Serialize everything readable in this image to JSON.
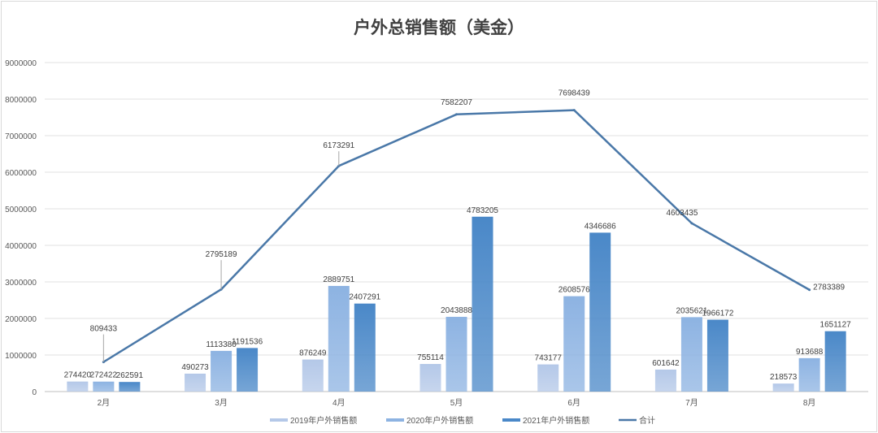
{
  "chart_data": {
    "type": "bar+line",
    "title": "户外总销售额（美金）",
    "categories": [
      "2月",
      "3月",
      "4月",
      "5月",
      "6月",
      "7月",
      "8月"
    ],
    "series": [
      {
        "name": "2019年户外销售额",
        "kind": "bar",
        "color": "#b4c8e8",
        "values": [
          274420,
          490273,
          876249,
          755114,
          743177,
          601642,
          218573
        ]
      },
      {
        "name": "2020年户外销售额",
        "kind": "bar",
        "color": "#8db3e2",
        "values": [
          272422,
          1113380,
          2889751,
          2043888,
          2608576,
          2035621,
          913688
        ]
      },
      {
        "name": "2021年户外销售额",
        "kind": "bar",
        "color": "#4a88c8",
        "values": [
          262591,
          1191536,
          2407291,
          4783205,
          4346686,
          1966172,
          1651127
        ]
      },
      {
        "name": "合计",
        "kind": "line",
        "color": "#4a78a8",
        "values": [
          809433,
          2795189,
          6173291,
          7582207,
          7698439,
          4603435,
          2783389
        ]
      }
    ],
    "ylim": [
      0,
      9000000
    ],
    "yticks": [
      "0",
      "1000000",
      "2000000",
      "3000000",
      "4000000",
      "5000000",
      "6000000",
      "7000000",
      "8000000",
      "9000000"
    ],
    "grid": true,
    "legend": "bottom"
  }
}
